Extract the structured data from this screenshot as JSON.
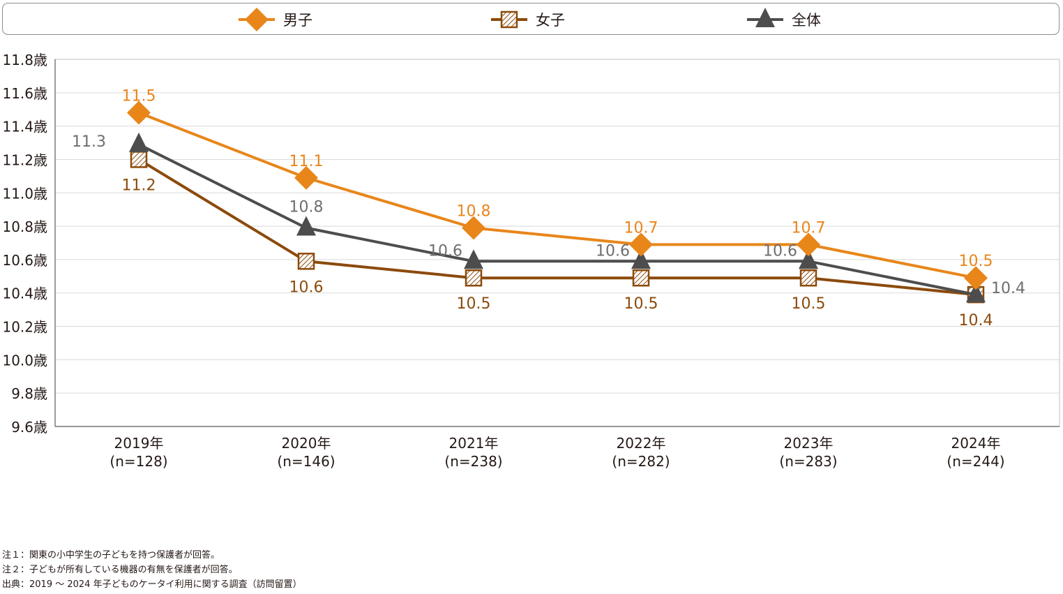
{
  "chart_data": {
    "type": "line",
    "categories": [
      "2019年",
      "2020年",
      "2021年",
      "2022年",
      "2023年",
      "2024年"
    ],
    "sample_sizes": [
      "(n=128)",
      "(n=146)",
      "(n=238)",
      "(n=282)",
      "(n=283)",
      "(n=244)"
    ],
    "y_ticks": [
      "11.8歳",
      "11.6歳",
      "11.4歳",
      "11.2歳",
      "11.0歳",
      "10.8歳",
      "10.6歳",
      "10.4歳",
      "10.2歳",
      "10.0歳",
      "9.8歳",
      "9.6歳"
    ],
    "ylim": [
      9.6,
      11.8
    ],
    "ystep": 0.2,
    "grid": true,
    "legend_position": "top",
    "series": [
      {
        "key": "boys",
        "name": "男子",
        "marker": "diamond",
        "color": "#E8861A",
        "values": [
          11.48,
          11.09,
          10.79,
          10.69,
          10.69,
          10.49
        ],
        "labels": [
          "11.5",
          "11.1",
          "10.8",
          "10.7",
          "10.7",
          "10.5"
        ]
      },
      {
        "key": "girls",
        "name": "女子",
        "marker": "hatched-square",
        "color": "#8B4A0B",
        "values": [
          11.2,
          10.59,
          10.49,
          10.49,
          10.49,
          10.39
        ],
        "labels": [
          "11.2",
          "10.6",
          "10.5",
          "10.5",
          "10.5",
          "10.4"
        ]
      },
      {
        "key": "total",
        "name": "全体",
        "marker": "triangle",
        "color": "#4D4D4D",
        "values": [
          11.29,
          10.79,
          10.59,
          10.59,
          10.59,
          10.39
        ],
        "labels": [
          "11.3",
          "10.8",
          "10.6",
          "10.6",
          "10.6",
          "10.4"
        ]
      }
    ]
  },
  "notes": [
    "注１：関東の小中学生の子どもを持つ保護者が回答。",
    "注２：子どもが所有している機器の有無を保護者が回答。",
    "出典：2019 ～ 2024 年子どものケータイ利用に関する調査（訪問留置）"
  ]
}
